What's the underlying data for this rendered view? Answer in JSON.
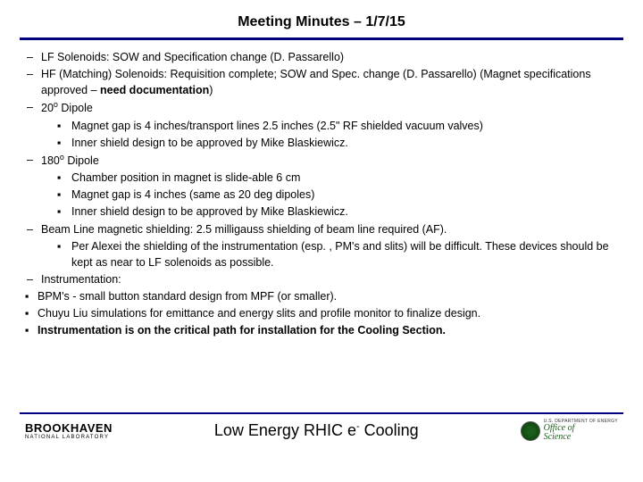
{
  "title": "Meeting Minutes – 1/7/15",
  "items": {
    "i0": "LF Solenoids: SOW and Specification change (D. Passarello)",
    "i1a": "HF (Matching) Solenoids: Requisition complete; SOW and Spec. change (D. Passarello)",
    "i1b": "(Magnet specifications approved – ",
    "i1c": "need documentation",
    "i1d": ")",
    "i2": "20",
    "i2s": "o",
    "i2t": " Dipole",
    "i2_1": "Magnet gap is 4 inches/transport lines 2.5 inches (2.5\" RF shielded vacuum valves)",
    "i2_2": "Inner shield design to be approved by Mike Blaskiewicz.",
    "i3": "180",
    "i3s": "o",
    "i3t": " Dipole",
    "i3_1": "Chamber position in magnet is slide-able 6 cm",
    "i3_2": "Magnet gap is 4 inches (same as 20 deg dipoles)",
    "i3_3": "Inner shield design to be approved by Mike Blaskiewicz.",
    "i4": "Beam Line magnetic shielding: 2.5 milligauss shielding of beam line required (AF).",
    "i4_1": "Per Alexei the shielding of the instrumentation (esp. , PM's and slits) will be difficult. These devices should be kept as near to LF solenoids as possible.",
    "i5": "Instrumentation:",
    "t1": "BPM's - small button standard design from MPF (or smaller).",
    "t2": "Chuyu Liu simulations for emittance and energy slits and profile monitor to finalize design.",
    "t3": "Instrumentation is on the critical path for installation for the Cooling Section."
  },
  "footer": {
    "bnl_big": "BROOKHAVEN",
    "bnl_small": "NATIONAL LABORATORY",
    "center_a": "Low Energy RHIC e",
    "center_sup": "-",
    "center_b": " Cooling",
    "office": "Office of",
    "science": "Science",
    "dept": "U.S. DEPARTMENT OF ENERGY"
  },
  "glyph": {
    "dash": "–",
    "sq": "▪"
  }
}
